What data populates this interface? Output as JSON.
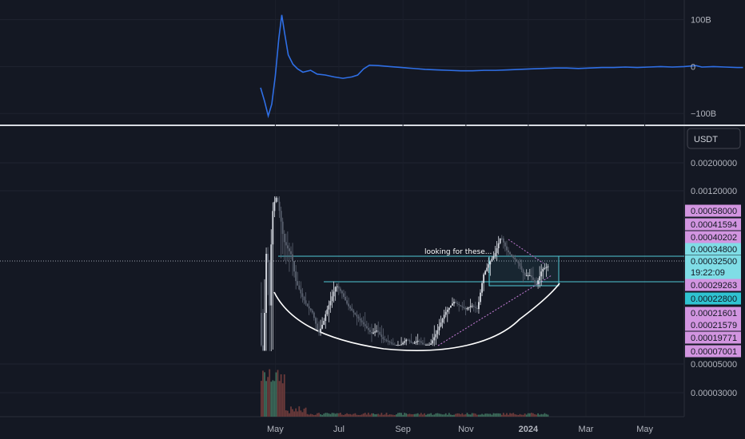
{
  "chart_data": [
    {
      "type": "line",
      "name": "indicator-pane",
      "y_ticks": [
        {
          "label": "100B",
          "value": 100
        },
        {
          "label": "0",
          "value": 0
        },
        {
          "label": "−100B",
          "value": -100
        }
      ],
      "ylim": [
        -120,
        135
      ],
      "series": [
        {
          "color": "#2f6fe6",
          "points": [
            [
              0.0,
              -45
            ],
            [
              0.7,
              -75
            ],
            [
              1.3,
              -105
            ],
            [
              1.9,
              -80
            ],
            [
              2.5,
              -20
            ],
            [
              3.1,
              60
            ],
            [
              3.6,
              110
            ],
            [
              4.1,
              70
            ],
            [
              4.7,
              25
            ],
            [
              5.5,
              5
            ],
            [
              6.3,
              -5
            ],
            [
              7.2,
              -12
            ],
            [
              8.5,
              -8
            ],
            [
              9.6,
              -16
            ],
            [
              11,
              -18
            ],
            [
              12.5,
              -22
            ],
            [
              14,
              -25
            ],
            [
              15.5,
              -22
            ],
            [
              16.5,
              -18
            ],
            [
              17.5,
              -5
            ],
            [
              18.5,
              3
            ],
            [
              20,
              2
            ],
            [
              22,
              0
            ],
            [
              24,
              -2
            ],
            [
              26,
              -4
            ],
            [
              28,
              -6
            ],
            [
              30,
              -7
            ],
            [
              32,
              -8
            ],
            [
              34,
              -9
            ],
            [
              36,
              -9
            ],
            [
              38,
              -8
            ],
            [
              40,
              -8
            ],
            [
              42,
              -7
            ],
            [
              44,
              -6
            ],
            [
              46,
              -5
            ],
            [
              48,
              -4
            ],
            [
              50,
              -3
            ],
            [
              52,
              -3
            ],
            [
              54,
              -4
            ],
            [
              56,
              -3
            ],
            [
              58,
              -2
            ],
            [
              60,
              -2
            ],
            [
              62,
              -1
            ],
            [
              64,
              -2
            ],
            [
              66,
              -1
            ],
            [
              68,
              0
            ],
            [
              70,
              -1
            ],
            [
              72,
              0
            ],
            [
              74,
              2
            ],
            [
              75,
              -1
            ],
            [
              77,
              0
            ],
            [
              79,
              -1
            ],
            [
              81,
              -2
            ],
            [
              82,
              -2
            ]
          ]
        }
      ]
    },
    {
      "type": "candlestick",
      "name": "price-pane",
      "quote_currency": "USDT",
      "y_ticks": [
        {
          "label": "0.00200000",
          "value": 0.002
        },
        {
          "label": "0.00120000",
          "value": 0.0012
        },
        {
          "label": "0.00005000",
          "value": 5e-05
        },
        {
          "label": "0.00003000",
          "value": 3e-05
        }
      ],
      "x_ticks": [
        {
          "label": "May",
          "value": 2.5
        },
        {
          "label": "Jul",
          "value": 13.3
        },
        {
          "label": "Sep",
          "value": 24.2
        },
        {
          "label": "Nov",
          "value": 34.9
        },
        {
          "label": "2024",
          "value": 45.5
        },
        {
          "label": "Mar",
          "value": 55.3
        },
        {
          "label": "May",
          "value": 65.3
        }
      ],
      "price_tags": [
        {
          "label": "0.00058000",
          "color": "#d295e0",
          "value": 0.00058
        },
        {
          "label": "0.00041594",
          "color": "#d295e0",
          "value": 0.00041594
        },
        {
          "label": "0.00040202",
          "color": "#d295e0",
          "value": 0.00040202
        },
        {
          "label": "0.00034800",
          "color": "#7fdde6",
          "value": 0.000348
        },
        {
          "label": "0.00032500",
          "sublabel": "19:22:09",
          "color": "#7fdde6",
          "value": 0.000325,
          "current": true
        },
        {
          "label": "0.00029263",
          "color": "#d295e0",
          "value": 0.00029263
        },
        {
          "label": "0.00022800",
          "color": "#2fc3d1",
          "value": 0.000228
        },
        {
          "label": "0.00021601",
          "color": "#d295e0",
          "value": 0.00021601
        },
        {
          "label": "0.00021579",
          "color": "#d295e0",
          "value": 0.00021579
        },
        {
          "label": "0.00019771",
          "color": "#d295e0",
          "value": 0.00019771
        },
        {
          "label": "0.00007001",
          "color": "#d295e0",
          "value": 7.001e-05
        }
      ],
      "annotation": "looking for these...",
      "price_path": [
        [
          0.0,
          0.00022
        ],
        [
          0.6,
          0.0001
        ],
        [
          1.2,
          0.0004
        ],
        [
          1.8,
          0.0002
        ],
        [
          2.4,
          0.0009
        ],
        [
          2.9,
          0.0011
        ],
        [
          3.5,
          0.0006
        ],
        [
          4.0,
          0.0004
        ],
        [
          4.6,
          0.00038
        ],
        [
          5.3,
          0.00036
        ],
        [
          6.1,
          0.0003
        ],
        [
          7.0,
          0.00027
        ],
        [
          8.0,
          0.00024
        ],
        [
          9.0,
          0.00022
        ],
        [
          10.0,
          0.00019
        ],
        [
          11.0,
          0.00021
        ],
        [
          12.0,
          0.00025
        ],
        [
          13.0,
          0.00029
        ],
        [
          14.0,
          0.00027
        ],
        [
          15.0,
          0.00024
        ],
        [
          16.0,
          0.00022
        ],
        [
          17.0,
          0.00021
        ],
        [
          18.0,
          0.0002
        ],
        [
          19.0,
          0.00019
        ],
        [
          20.0,
          0.000195
        ],
        [
          21.0,
          0.00018
        ],
        [
          22.0,
          0.000175
        ],
        [
          23.0,
          0.000168
        ],
        [
          24.0,
          0.00017
        ],
        [
          25.0,
          0.00018
        ],
        [
          26.0,
          0.000172
        ],
        [
          27.0,
          0.000178
        ],
        [
          28.0,
          0.000168
        ],
        [
          29.0,
          0.00017
        ],
        [
          30.0,
          0.00019
        ],
        [
          31.0,
          0.00021
        ],
        [
          32.0,
          0.00023
        ],
        [
          33.0,
          0.00025
        ],
        [
          34.0,
          0.00024
        ],
        [
          35.0,
          0.00023
        ],
        [
          36.0,
          0.00024
        ],
        [
          37.0,
          0.00023
        ],
        [
          38.0,
          0.00031
        ],
        [
          39.0,
          0.00033
        ],
        [
          40.0,
          0.00036
        ],
        [
          41.0,
          0.00041
        ],
        [
          42.0,
          0.00037
        ],
        [
          43.0,
          0.00035
        ],
        [
          44.0,
          0.00033
        ],
        [
          45.0,
          0.00031
        ],
        [
          46.0,
          0.00031
        ],
        [
          47.0,
          0.00029
        ],
        [
          48.0,
          0.00032
        ],
        [
          49.0,
          0.000325
        ]
      ]
    }
  ]
}
